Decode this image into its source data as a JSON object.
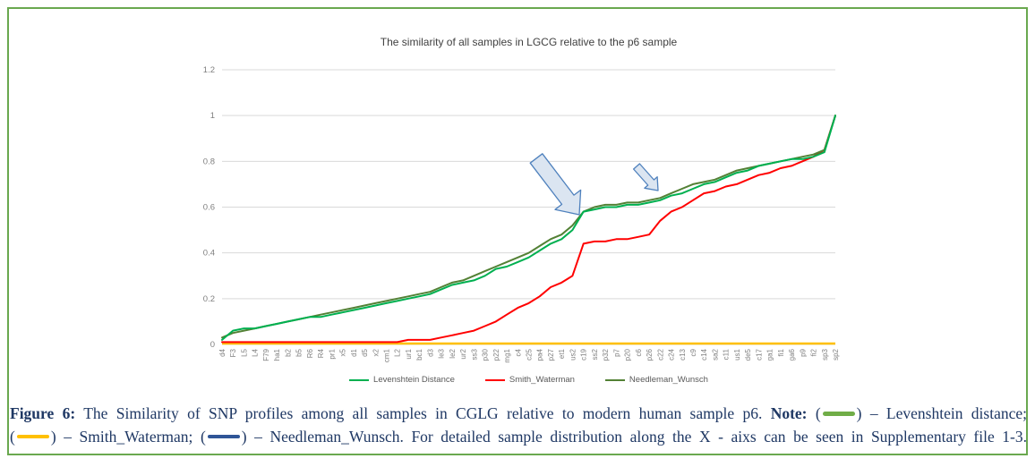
{
  "figure_border_color": "#6aa84f",
  "chart_data": {
    "type": "line",
    "title": "The similarity of all samples in LGCG relative to the p6 sample",
    "xlabel": "",
    "ylabel": "",
    "ylim": [
      0,
      1.2
    ],
    "yticks": [
      "0",
      "0.2",
      "0.4",
      "0.6",
      "0.8",
      "1",
      "1.2"
    ],
    "grid": true,
    "legend_position": "bottom",
    "grid_color": "#d9d9d9",
    "tick_color": "#7f7f7f",
    "categories": [
      "d4",
      "F3",
      "L5",
      "L4",
      "F79",
      "ha1",
      "b2",
      "b5",
      "R6",
      "R4",
      "pr1",
      "x5",
      "d1",
      "d5",
      "x2",
      "cm1",
      "L2",
      "ur1",
      "bc1",
      "d3",
      "le3",
      "le2",
      "ur2",
      "ss3",
      "p30",
      "p22",
      "mg1",
      "c4",
      "c25",
      "pa4",
      "p27",
      "et1",
      "us2",
      "c19",
      "ss2",
      "p32",
      "p7",
      "p20",
      "c6",
      "p26",
      "c22",
      "c24",
      "c13",
      "c9",
      "c14",
      "sa2",
      "c11",
      "us1",
      "de5",
      "c17",
      "ga1",
      "fi1",
      "ga6",
      "p9",
      "fi2",
      "sp3",
      "sp2"
    ],
    "series": [
      {
        "name": "Levenshtein Distance",
        "color": "#00b050",
        "values": [
          0.02,
          0.06,
          0.07,
          0.07,
          0.08,
          0.09,
          0.1,
          0.11,
          0.12,
          0.12,
          0.13,
          0.14,
          0.15,
          0.16,
          0.17,
          0.18,
          0.19,
          0.2,
          0.21,
          0.22,
          0.24,
          0.26,
          0.27,
          0.28,
          0.3,
          0.33,
          0.34,
          0.36,
          0.38,
          0.41,
          0.44,
          0.46,
          0.5,
          0.58,
          0.59,
          0.6,
          0.6,
          0.61,
          0.61,
          0.62,
          0.63,
          0.65,
          0.66,
          0.68,
          0.7,
          0.71,
          0.73,
          0.75,
          0.76,
          0.78,
          0.79,
          0.8,
          0.81,
          0.81,
          0.82,
          0.84,
          1.0
        ]
      },
      {
        "name": "Smith_Waterman",
        "color": "#ff0000",
        "values": [
          0.01,
          0.01,
          0.01,
          0.01,
          0.01,
          0.01,
          0.01,
          0.01,
          0.01,
          0.01,
          0.01,
          0.01,
          0.01,
          0.01,
          0.01,
          0.01,
          0.01,
          0.02,
          0.02,
          0.02,
          0.03,
          0.04,
          0.05,
          0.06,
          0.08,
          0.1,
          0.13,
          0.16,
          0.18,
          0.21,
          0.25,
          0.27,
          0.3,
          0.44,
          0.45,
          0.45,
          0.46,
          0.46,
          0.47,
          0.48,
          0.54,
          0.58,
          0.6,
          0.63,
          0.66,
          0.67,
          0.69,
          0.7,
          0.72,
          0.74,
          0.75,
          0.77,
          0.78,
          0.8,
          0.82,
          0.85,
          1.0
        ]
      },
      {
        "name": "Needleman_Wunsch",
        "color": "#538135",
        "values": [
          0.03,
          0.05,
          0.06,
          0.07,
          0.08,
          0.09,
          0.1,
          0.11,
          0.12,
          0.13,
          0.14,
          0.15,
          0.16,
          0.17,
          0.18,
          0.19,
          0.2,
          0.21,
          0.22,
          0.23,
          0.25,
          0.27,
          0.28,
          0.3,
          0.32,
          0.34,
          0.36,
          0.38,
          0.4,
          0.43,
          0.46,
          0.48,
          0.52,
          0.58,
          0.6,
          0.61,
          0.61,
          0.62,
          0.62,
          0.63,
          0.64,
          0.66,
          0.68,
          0.7,
          0.71,
          0.72,
          0.74,
          0.76,
          0.77,
          0.78,
          0.79,
          0.8,
          0.81,
          0.82,
          0.83,
          0.85,
          1.0
        ]
      }
    ],
    "baseline": {
      "name": "unlabeled-yellow-baseline",
      "color": "#ffc000",
      "value": 0
    },
    "annotations": [
      {
        "type": "block-arrow",
        "tail": [
          599,
          177
        ],
        "tip": [
          647,
          240
        ],
        "shaft_width": 17,
        "head_width": 36,
        "head_length": 21,
        "fill": "#dbe5f1",
        "stroke": "#4f81bd"
      },
      {
        "type": "block-arrow",
        "tail": [
          711,
          186
        ],
        "tip": [
          735,
          213
        ],
        "shaft_width": 9,
        "head_width": 19,
        "head_length": 12,
        "fill": "#dbe5f1",
        "stroke": "#4f81bd"
      }
    ]
  },
  "caption": {
    "figure_label": "Figure 6:",
    "body": "The Similarity of SNP profiles among all samples in CGLG relative to modern human sample p6.",
    "note_label": "Note:",
    "open_paren": "(",
    "close_paren": ")",
    "levenshtein_suffix": "– Levenshtein distance;",
    "smith_suffix": "– Smith_Waterman;",
    "needleman_suffix": "– Needleman_Wunsch.",
    "tail": "For detailed sample distribution along the X - aixs can be seen in Supplementary file 1-3.",
    "swatches": {
      "levenshtein": {
        "color": "#70ad47"
      },
      "smith_waterman": {
        "color": "#ffc000"
      },
      "needleman_wunsch": {
        "color": "#2f5597"
      }
    }
  }
}
